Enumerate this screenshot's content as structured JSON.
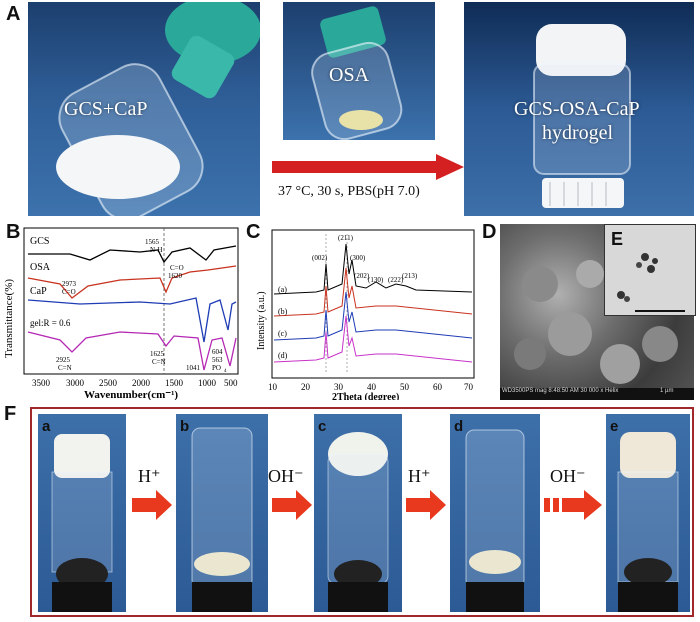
{
  "panel_labels": {
    "A": "A",
    "B": "B",
    "C": "C",
    "D": "D",
    "E": "E",
    "F": "F"
  },
  "panelA": {
    "photo1_label": "GCS+CaP",
    "photo2_label": "OSA",
    "photo3_label_line1": "GCS-OSA-CaP",
    "photo3_label_line2": "hydrogel",
    "condition": "37 °C, 30 s, PBS(pH 7.0)",
    "arrow_color": "#d42020"
  },
  "panelB": {
    "ylabel": "Transmittance(%)",
    "xlabel": "Wavenumber(cm⁻¹)",
    "xticks": [
      "3500",
      "3000",
      "2500",
      "2000",
      "1500",
      "1000",
      "500"
    ],
    "series_labels": [
      "GCS",
      "OSA",
      "CaP",
      "gel:R = 0.6"
    ],
    "colors": [
      "#000000",
      "#c8321e",
      "#1e3cb4",
      "#b428b4"
    ],
    "annotations": [
      "1565",
      "N-H",
      "2973",
      "C=O",
      "C=O",
      "1620",
      "2925",
      "C=N",
      "1625",
      "C=N",
      "1041",
      "604",
      "563",
      "PO",
      "4"
    ]
  },
  "panelC": {
    "ylabel": "Intensity (a.u.)",
    "xlabel": "2Theta (degree)",
    "xticks": [
      "10",
      "20",
      "30",
      "40",
      "50",
      "60",
      "70"
    ],
    "curve_labels": [
      "(a)",
      "(b)",
      "(c)",
      "(d)"
    ],
    "peaks": [
      "(002)",
      "(211)",
      "(300)",
      "(202)",
      "(130)",
      "(222)",
      "(213)"
    ],
    "colors": [
      "#000000",
      "#c8321e",
      "#1e3cb4",
      "#c832c8"
    ]
  },
  "panelD": {
    "footer": "WD3500PS  mag  8:48:50 AM  30 000 x  Helix",
    "scale": "1 µm"
  },
  "panelF": {
    "sublabels": [
      "a",
      "b",
      "c",
      "d",
      "e"
    ],
    "arrow_labels": [
      "H⁺",
      "OH⁻",
      "H⁺",
      "OH⁻"
    ],
    "frame_color": "#a0282a",
    "arrow_color": "#e8381e"
  }
}
